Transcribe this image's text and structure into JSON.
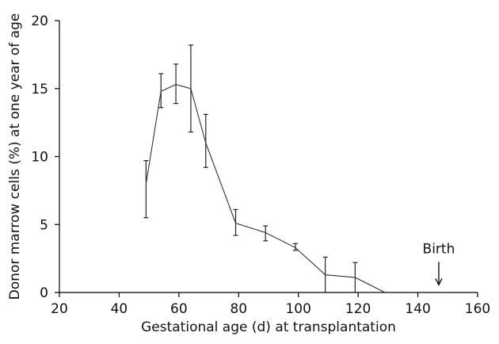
{
  "chart_data": {
    "type": "line",
    "xlabel": "Gestational age (d) at transplantation",
    "ylabel": "Donor marrow cells (%) at one year of age",
    "xlim": [
      20,
      160
    ],
    "ylim": [
      0,
      20
    ],
    "xticks": [
      20,
      40,
      60,
      80,
      100,
      120,
      140,
      160
    ],
    "yticks": [
      0,
      5,
      10,
      15,
      20
    ],
    "grid": false,
    "series": [
      {
        "x": [
          49,
          54,
          59,
          64,
          69,
          79,
          89,
          99,
          109,
          119,
          129
        ],
        "y": [
          8.0,
          14.8,
          15.3,
          15.0,
          11.0,
          5.1,
          4.4,
          3.3,
          1.3,
          1.1,
          0.0
        ],
        "err_low": [
          5.5,
          13.6,
          13.9,
          11.8,
          9.2,
          4.2,
          3.8,
          3.1,
          0.0,
          0.0,
          null
        ],
        "err_high": [
          9.7,
          16.1,
          16.8,
          18.2,
          13.1,
          6.1,
          4.9,
          3.6,
          2.6,
          2.2,
          null
        ]
      }
    ],
    "annotations": [
      {
        "text": "Birth",
        "x": 147,
        "y": 0.5,
        "arrow": "down"
      }
    ]
  }
}
